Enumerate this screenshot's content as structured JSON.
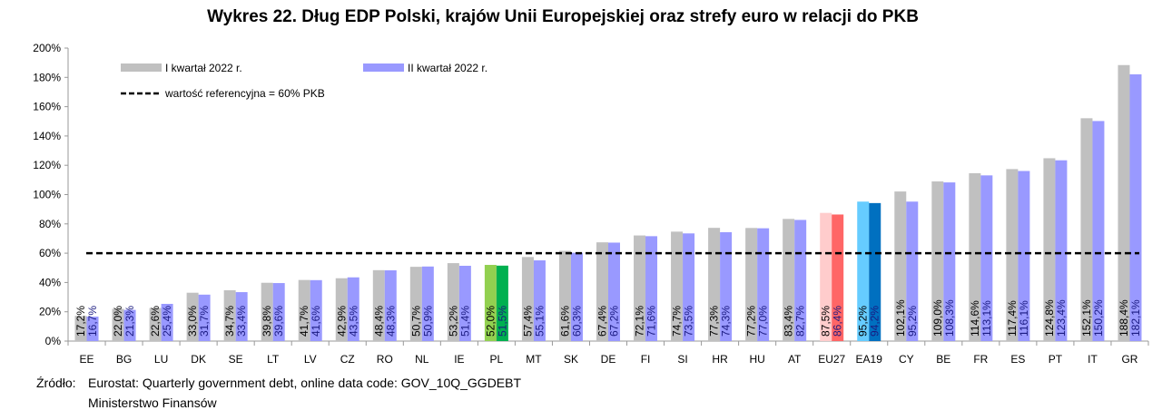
{
  "chart_data": {
    "type": "bar",
    "title": "Wykres 22. Dług EDP Polski, krajów Unii Europejskiej oraz strefy euro w relacji do PKB",
    "categories": [
      "EE",
      "BG",
      "LU",
      "DK",
      "SE",
      "LT",
      "LV",
      "CZ",
      "RO",
      "NL",
      "IE",
      "PL",
      "MT",
      "SK",
      "DE",
      "FI",
      "SI",
      "HR",
      "HU",
      "AT",
      "EU27",
      "EA19",
      "CY",
      "BE",
      "FR",
      "ES",
      "PT",
      "IT",
      "GR"
    ],
    "series": [
      {
        "name": "I kwartał 2022 r.",
        "color": "#c0c0c0",
        "values": [
          17.2,
          22.0,
          22.6,
          33.0,
          34.7,
          39.8,
          41.7,
          42.9,
          48.4,
          50.7,
          53.2,
          52.0,
          57.4,
          61.6,
          67.4,
          72.1,
          74.7,
          77.3,
          77.2,
          83.4,
          87.5,
          95.2,
          102.1,
          109.0,
          114.6,
          117.4,
          124.8,
          152.1,
          188.4
        ],
        "labels": [
          "17,2%",
          "22,0%",
          "22,6%",
          "33,0%",
          "34,7%",
          "39,8%",
          "41,7%",
          "42,9%",
          "48,4%",
          "50,7%",
          "53,2%",
          "52,0%",
          "57,4%",
          "61,6%",
          "67,4%",
          "72,1%",
          "74,7%",
          "77,3%",
          "77,2%",
          "83,4%",
          "87,5%",
          "95,2%",
          "102,1%",
          "109,0%",
          "114,6%",
          "117,4%",
          "124,8%",
          "152,1%",
          "188,4%"
        ]
      },
      {
        "name": "II kwartał 2022 r.",
        "color": "#9999ff",
        "values": [
          16.7,
          21.3,
          25.4,
          31.7,
          33.4,
          39.6,
          41.6,
          43.5,
          48.3,
          50.9,
          51.4,
          51.5,
          55.1,
          60.3,
          67.2,
          71.6,
          73.5,
          74.3,
          77.0,
          82.7,
          86.4,
          94.2,
          95.2,
          108.3,
          113.1,
          116.1,
          123.4,
          150.2,
          182.1
        ],
        "labels": [
          "16,7%",
          "21,3%",
          "25,4%",
          "31,7%",
          "33,4%",
          "39,6%",
          "41,6%",
          "43,5%",
          "48,3%",
          "50,9%",
          "51,4%",
          "51,5%",
          "55,1%",
          "60,3%",
          "67,2%",
          "71,6%",
          "73,5%",
          "74,3%",
          "77,0%",
          "82,7%",
          "86,4%",
          "94,2%",
          "95,2%",
          "108,3%",
          "113,1%",
          "116,1%",
          "123,4%",
          "150,2%",
          "182,1%"
        ]
      }
    ],
    "highlight_colors": {
      "PL": [
        "#92d050",
        "#00b050"
      ],
      "EU27": [
        "#ffcccc",
        "#ff6666"
      ],
      "EA19": [
        "#66ccff",
        "#0070c0"
      ]
    },
    "reference_line": {
      "value": 60,
      "label": "wartość referencyjna = 60% PKB",
      "style": "dashed",
      "color": "#000000"
    },
    "ylim": [
      0,
      200
    ],
    "yticks": [
      "0%",
      "20%",
      "40%",
      "60%",
      "80%",
      "100%",
      "120%",
      "140%",
      "160%",
      "180%",
      "200%"
    ],
    "grid": false,
    "legend": "top-left"
  },
  "source": {
    "label": "Źródło:",
    "lines": [
      "Eurostat: Quarterly government debt, online data code: GOV_10Q_GGDEBT",
      "Ministerstwo Finansów"
    ]
  }
}
